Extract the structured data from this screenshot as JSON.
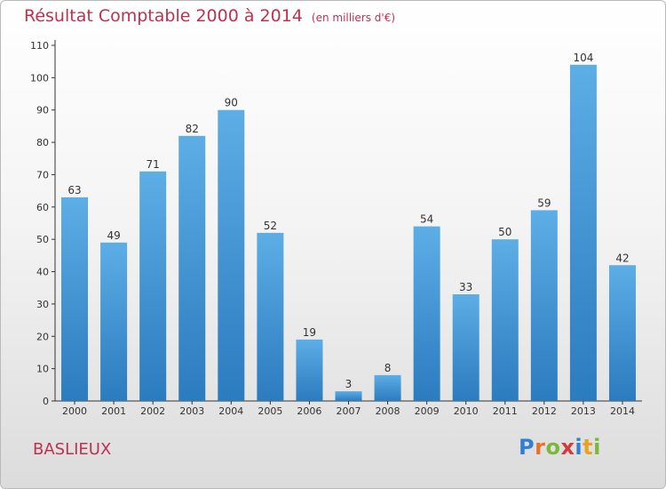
{
  "chart_data": {
    "type": "bar",
    "title": "Résultat Comptable 2000 à 2014",
    "subtitle": "(en milliers d'€)",
    "categories": [
      "2000",
      "2001",
      "2002",
      "2003",
      "2004",
      "2005",
      "2006",
      "2007",
      "2008",
      "2009",
      "2010",
      "2011",
      "2012",
      "2013",
      "2014"
    ],
    "values": [
      63,
      49,
      71,
      82,
      90,
      52,
      19,
      3,
      8,
      54,
      33,
      50,
      59,
      104,
      42
    ],
    "ylim": [
      0,
      110
    ],
    "yticks": [
      0,
      10,
      20,
      30,
      40,
      50,
      60,
      70,
      80,
      90,
      100,
      110
    ],
    "grid": false,
    "xlabel": "",
    "ylabel": "",
    "bar_color_top": "#5dade6",
    "bar_color_bottom": "#2b7bbf"
  },
  "footer": {
    "commune": "BASLIEUX",
    "logo_letters": [
      {
        "char": "P",
        "color": "#2f7fd6"
      },
      {
        "char": "r",
        "color": "#e8712a"
      },
      {
        "char": "o",
        "color": "#7ab83a"
      },
      {
        "char": "x",
        "color": "#d43a3a"
      },
      {
        "char": "i",
        "color": "#2f7fd6"
      },
      {
        "char": "t",
        "color": "#e8a21f"
      },
      {
        "char": "i",
        "color": "#7ab83a"
      }
    ]
  }
}
